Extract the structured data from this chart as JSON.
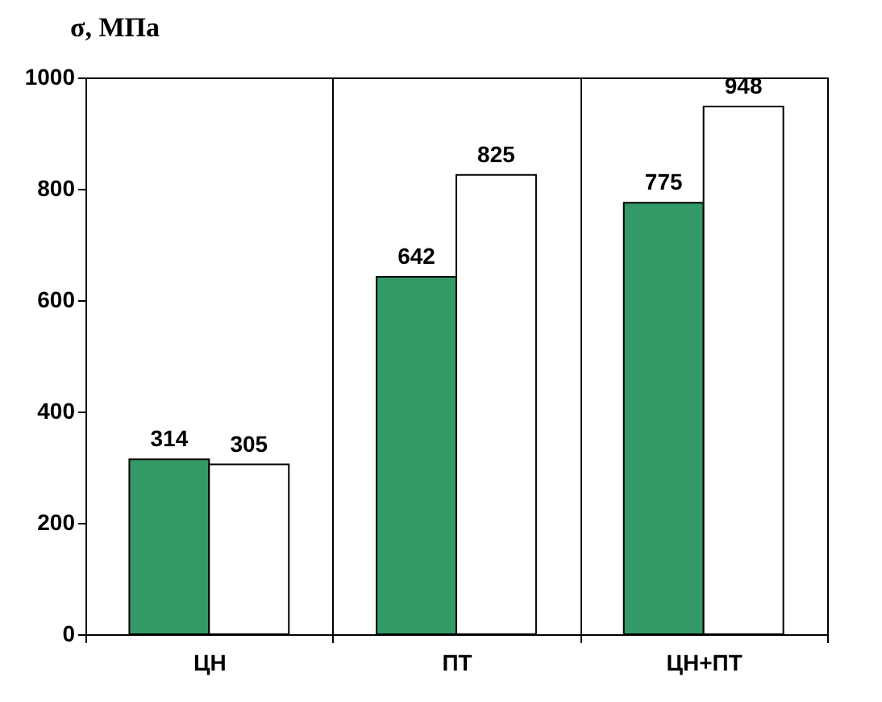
{
  "chart_data": {
    "type": "bar",
    "ylabel": "σ, МПа",
    "categories": [
      "ЦН",
      "ПТ",
      "ЦН+ПТ"
    ],
    "series": [
      {
        "color": "#339966",
        "values": [
          314,
          642,
          775
        ]
      },
      {
        "color": "#ffffff",
        "values": [
          305,
          825,
          948
        ]
      }
    ],
    "ylim": [
      0,
      1000
    ],
    "yticks": [
      0,
      200,
      400,
      600,
      800,
      1000
    ],
    "grid": "x",
    "data_labels": true
  }
}
